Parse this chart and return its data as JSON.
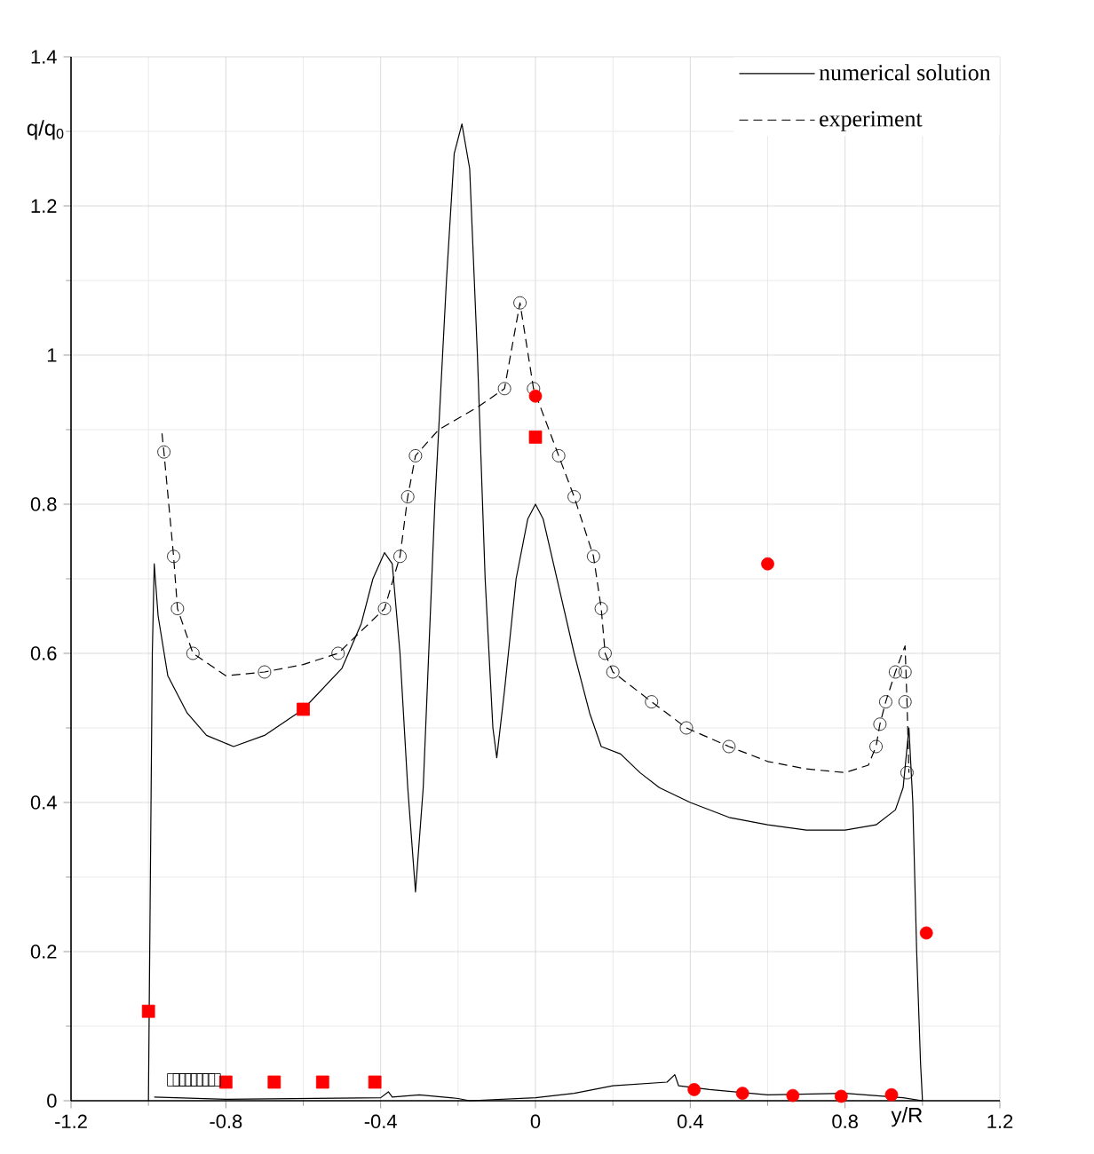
{
  "chart_data": {
    "type": "line",
    "xlabel": "y/R",
    "ylabel": "q/q$_{0}$",
    "xlim": [
      -1.2,
      1.2
    ],
    "ylim": [
      0,
      1.4
    ],
    "xticks": [
      {
        "value": -1.2,
        "label": "-1.2"
      },
      {
        "value": -0.8,
        "label": "-0.8"
      },
      {
        "value": -0.4,
        "label": "-0.4"
      },
      {
        "value": 0,
        "label": "0"
      },
      {
        "value": 0.4,
        "label": "0.4"
      },
      {
        "value": 0.8,
        "label": "0.8"
      },
      {
        "value": 1.2,
        "label": "1.2"
      }
    ],
    "yticks": [
      {
        "value": 0,
        "label": "0"
      },
      {
        "value": 0.2,
        "label": "0.2"
      },
      {
        "value": 0.4,
        "label": "0.4"
      },
      {
        "value": 0.6,
        "label": "0.6"
      },
      {
        "value": 0.8,
        "label": "0.8"
      },
      {
        "value": 1,
        "label": "1"
      },
      {
        "value": 1.2,
        "label": "1.2"
      },
      {
        "value": 1.4,
        "label": "1.4"
      }
    ],
    "grid": true,
    "legend": "top right",
    "series": [
      {
        "name": "numerical solution",
        "color": "#000000",
        "line_style": "solid",
        "marker": "none",
        "x": [
          -1.0,
          -0.995,
          -0.99,
          -0.985,
          -0.975,
          -0.95,
          -0.9,
          -0.85,
          -0.78,
          -0.7,
          -0.6,
          -0.5,
          -0.45,
          -0.42,
          -0.39,
          -0.37,
          -0.35,
          -0.33,
          -0.31,
          -0.29,
          -0.26,
          -0.23,
          -0.21,
          -0.19,
          -0.17,
          -0.15,
          -0.13,
          -0.11,
          -0.1,
          -0.08,
          -0.05,
          -0.02,
          0.0,
          0.02,
          0.06,
          0.1,
          0.14,
          0.17,
          0.22,
          0.27,
          0.32,
          0.4,
          0.5,
          0.6,
          0.7,
          0.8,
          0.88,
          0.93,
          0.95,
          0.965,
          0.975,
          0.985,
          0.995,
          1.0
        ],
        "values": [
          0.0,
          0.3,
          0.6,
          0.72,
          0.65,
          0.57,
          0.52,
          0.49,
          0.475,
          0.49,
          0.525,
          0.58,
          0.64,
          0.7,
          0.735,
          0.72,
          0.6,
          0.42,
          0.28,
          0.42,
          0.8,
          1.1,
          1.27,
          1.31,
          1.25,
          1.0,
          0.7,
          0.5,
          0.46,
          0.55,
          0.7,
          0.78,
          0.8,
          0.78,
          0.69,
          0.6,
          0.52,
          0.475,
          0.465,
          0.44,
          0.42,
          0.4,
          0.38,
          0.37,
          0.363,
          0.363,
          0.37,
          0.39,
          0.42,
          0.5,
          0.4,
          0.2,
          0.05,
          0.0
        ]
      },
      {
        "color": "#000000",
        "line_style": "solid",
        "marker": "none",
        "x": [
          -0.985,
          -0.8,
          -0.4,
          -0.38,
          -0.37,
          -0.3,
          -0.2,
          -0.17,
          0.0,
          0.1,
          0.2,
          0.34,
          0.36,
          0.37,
          0.45,
          0.6,
          0.8,
          0.95,
          1.0
        ],
        "values": [
          0.005,
          0.002,
          0.004,
          0.012,
          0.005,
          0.008,
          0.003,
          0.0,
          0.004,
          0.01,
          0.02,
          0.025,
          0.035,
          0.02,
          0.015,
          0.008,
          0.01,
          0.004,
          0.0
        ]
      },
      {
        "name": "experiment",
        "color": "#000000",
        "line_style": "dashed",
        "marker": "none",
        "x": [
          -0.965,
          -0.96,
          -0.935,
          -0.925,
          -0.885,
          -0.8,
          -0.7,
          -0.6,
          -0.51,
          -0.39,
          -0.35,
          -0.33,
          -0.31,
          -0.25,
          -0.15,
          -0.08,
          -0.04,
          -0.005,
          0.06,
          0.1,
          0.15,
          0.17,
          0.18,
          0.2,
          0.3,
          0.39,
          0.5,
          0.6,
          0.7,
          0.8,
          0.86,
          0.88,
          0.89,
          0.905,
          0.93,
          0.955,
          0.96,
          0.965
        ],
        "values": [
          0.895,
          0.87,
          0.73,
          0.66,
          0.6,
          0.57,
          0.575,
          0.585,
          0.6,
          0.66,
          0.73,
          0.81,
          0.865,
          0.9,
          0.93,
          0.955,
          1.07,
          0.955,
          0.865,
          0.81,
          0.73,
          0.66,
          0.6,
          0.575,
          0.535,
          0.5,
          0.475,
          0.455,
          0.445,
          0.44,
          0.45,
          0.475,
          0.505,
          0.535,
          0.575,
          0.61,
          0.535,
          0.44
        ]
      },
      {
        "type": "scatter",
        "color": "#000000",
        "marker": "circle",
        "x": [
          -0.96,
          -0.935,
          -0.925,
          -0.885,
          -0.7,
          -0.51,
          -0.39,
          -0.35,
          -0.33,
          -0.31,
          -0.08,
          -0.04,
          -0.005,
          0.06,
          0.1,
          0.15,
          0.17,
          0.18,
          0.2,
          0.3,
          0.39,
          0.5,
          0.88,
          0.89,
          0.905,
          0.93,
          0.955,
          0.955,
          0.96
        ],
        "values": [
          0.87,
          0.73,
          0.66,
          0.6,
          0.575,
          0.6,
          0.66,
          0.73,
          0.81,
          0.865,
          0.955,
          1.07,
          0.955,
          0.865,
          0.81,
          0.73,
          0.66,
          0.6,
          0.575,
          0.535,
          0.5,
          0.475,
          0.475,
          0.505,
          0.535,
          0.575,
          0.575,
          0.535,
          0.44
        ]
      },
      {
        "type": "scatter",
        "color": "#ff0000",
        "marker": "square",
        "x": [
          -1.0,
          -0.6,
          0.0,
          -0.8,
          -0.675,
          -0.55,
          -0.415
        ],
        "values": [
          0.12,
          0.525,
          0.89,
          0.025,
          0.025,
          0.025,
          0.025
        ]
      },
      {
        "type": "scatter",
        "color": "#ff0000",
        "marker": "circle",
        "x": [
          0.0,
          0.6,
          1.01,
          0.41,
          0.535,
          0.665,
          0.79,
          0.92
        ],
        "values": [
          0.945,
          0.72,
          0.225,
          0.015,
          0.01,
          0.007,
          0.006,
          0.008
        ]
      },
      {
        "type": "scatter",
        "color": "#000000",
        "marker": "square",
        "x": [
          -0.935,
          -0.92,
          -0.905,
          -0.89,
          -0.875,
          -0.86,
          -0.845,
          -0.83
        ],
        "values": [
          0.028,
          0.028,
          0.028,
          0.028,
          0.028,
          0.028,
          0.028,
          0.028
        ]
      }
    ]
  }
}
